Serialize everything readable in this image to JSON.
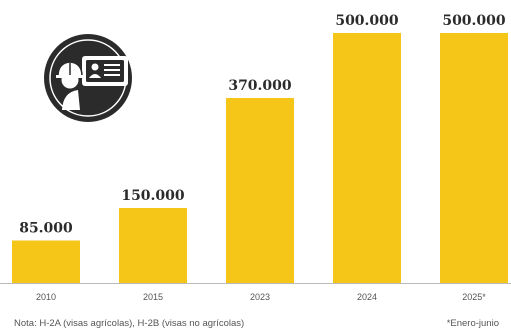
{
  "chart_data": {
    "type": "bar",
    "categories": [
      "2010",
      "2015",
      "2023",
      "2024",
      "2025*"
    ],
    "values": [
      85000,
      150000,
      370000,
      500000,
      500000
    ],
    "value_labels": [
      "85.000",
      "150.000",
      "370.000",
      "500.000",
      "500.000"
    ],
    "ylim": [
      0,
      500000
    ],
    "grid": false,
    "legend": "none",
    "bar_color": "#f5c518",
    "axis_color": "#bbbbbb",
    "icon_background": "#2b2b2b"
  },
  "note": "Nota: H-2A (visas agrícolas), H-2B (visas no agrícolas)",
  "footnote": "*Enero-junio",
  "icon": "worker-id-card-icon"
}
